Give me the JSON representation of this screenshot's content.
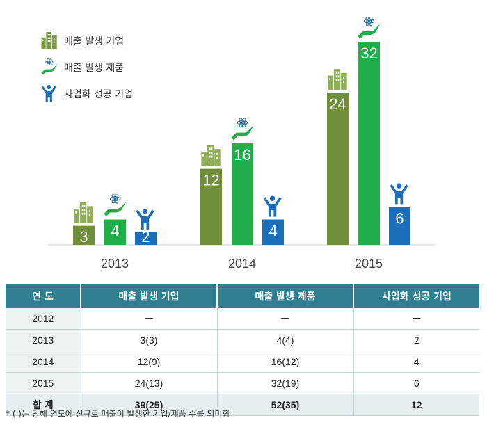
{
  "chart_data": {
    "type": "bar",
    "categories": [
      "2013",
      "2014",
      "2015"
    ],
    "series": [
      {
        "name": "매출 발생 기업",
        "values": [
          3,
          12,
          24
        ],
        "color": "#6f8f3a"
      },
      {
        "name": "매출 발생 제품",
        "values": [
          4,
          16,
          32
        ],
        "color": "#1fae4a"
      },
      {
        "name": "사업화 성공 기업",
        "values": [
          2,
          4,
          6
        ],
        "color": "#1a6fb8"
      }
    ],
    "icons": [
      "buildings-icon",
      "hand-atom-icon",
      "person-success-icon"
    ],
    "grid": false,
    "legend_position": "top-left"
  },
  "legend": [
    {
      "label": "매출 발생 기업"
    },
    {
      "label": "매출 발생 제품"
    },
    {
      "label": "사업화 성공 기업"
    }
  ],
  "table": {
    "headers": [
      "연 도",
      "매출 발생 기업",
      "매출 발생 제품",
      "사업화 성공 기업"
    ],
    "rows": [
      [
        "2012",
        "ㅡ",
        "ㅡ",
        "ㅡ"
      ],
      [
        "2013",
        "3(3)",
        "4(4)",
        "2"
      ],
      [
        "2014",
        "12(9)",
        "16(12)",
        "4"
      ],
      [
        "2015",
        "24(13)",
        "32(19)",
        "6"
      ]
    ],
    "total": [
      "합 계",
      "39(25)",
      "52(35)",
      "12"
    ]
  },
  "footnote": "* ( )는 당해 연도에 신규로 매출이 발생한 기업/제품 수를 의미함"
}
